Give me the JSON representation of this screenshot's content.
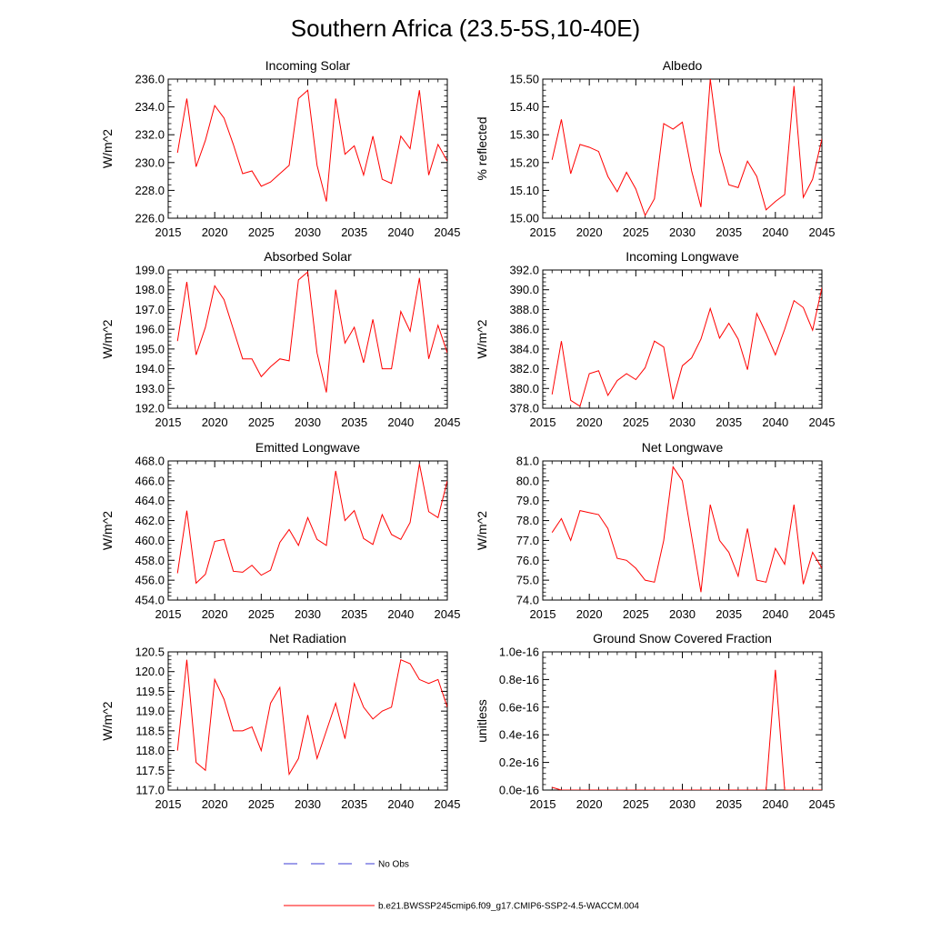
{
  "title": "Southern Africa (23.5-5S,10-40E)",
  "legend": {
    "entries": [
      {
        "label": "No Obs",
        "style": "dashed",
        "color": "#3b3bd6"
      },
      {
        "label": "b.e21.BWSSP245cmip6.f09_g17.CMIP6-SSP2-4.5-WACCM.004",
        "style": "solid",
        "color": "#ff0000"
      }
    ]
  },
  "chart_data": [
    {
      "type": "line",
      "title": "Incoming Solar",
      "ylabel": "W/m^2",
      "xlim": [
        2015,
        2045
      ],
      "ylim": [
        226,
        236
      ],
      "xticks": [
        2015,
        2020,
        2025,
        2030,
        2035,
        2040,
        2045
      ],
      "xtick_labels": [
        "2015",
        "2020",
        "2025",
        "2030",
        "2035",
        "2040",
        "2045"
      ],
      "yticks": [
        226,
        228,
        230,
        232,
        234,
        236
      ],
      "ytick_labels": [
        "226.0",
        "228.0",
        "230.0",
        "232.0",
        "234.0",
        "236.0"
      ],
      "x": [
        2016,
        2017,
        2018,
        2019,
        2020,
        2021,
        2022,
        2023,
        2024,
        2025,
        2026,
        2027,
        2028,
        2029,
        2030,
        2031,
        2032,
        2033,
        2034,
        2035,
        2036,
        2037,
        2038,
        2039,
        2040,
        2041,
        2042,
        2043,
        2044,
        2045
      ],
      "series": [
        {
          "color": "#ff0000",
          "values": [
            230.7,
            234.6,
            229.7,
            231.6,
            234.1,
            233.2,
            231.3,
            229.2,
            229.4,
            228.3,
            228.6,
            229.2,
            229.8,
            234.6,
            235.2,
            229.8,
            227.2,
            234.6,
            230.6,
            231.2,
            229.1,
            231.9,
            228.8,
            228.5,
            231.9,
            231.0,
            235.2,
            229.1,
            231.3,
            230.1
          ]
        }
      ]
    },
    {
      "type": "line",
      "title": "Albedo",
      "ylabel": "% reflected",
      "xlim": [
        2015,
        2045
      ],
      "ylim": [
        15.0,
        15.5
      ],
      "xticks": [
        2015,
        2020,
        2025,
        2030,
        2035,
        2040,
        2045
      ],
      "xtick_labels": [
        "2015",
        "2020",
        "2025",
        "2030",
        "2035",
        "2040",
        "2045"
      ],
      "yticks": [
        15.0,
        15.1,
        15.2,
        15.3,
        15.4,
        15.5
      ],
      "ytick_labels": [
        "15.00",
        "15.10",
        "15.20",
        "15.30",
        "15.40",
        "15.50"
      ],
      "x": [
        2016,
        2017,
        2018,
        2019,
        2020,
        2021,
        2022,
        2023,
        2024,
        2025,
        2026,
        2027,
        2028,
        2029,
        2030,
        2031,
        2032,
        2033,
        2034,
        2035,
        2036,
        2037,
        2038,
        2039,
        2040,
        2041,
        2042,
        2043,
        2044,
        2045
      ],
      "series": [
        {
          "color": "#ff0000",
          "values": [
            15.21,
            15.355,
            15.16,
            15.265,
            15.255,
            15.24,
            15.15,
            15.095,
            15.165,
            15.105,
            15.01,
            15.07,
            15.34,
            15.32,
            15.345,
            15.17,
            15.04,
            15.5,
            15.24,
            15.12,
            15.11,
            15.205,
            15.15,
            15.03,
            15.06,
            15.085,
            15.475,
            15.075,
            15.14,
            15.285
          ]
        }
      ]
    },
    {
      "type": "line",
      "title": "Absorbed Solar",
      "ylabel": "W/m^2",
      "xlim": [
        2015,
        2045
      ],
      "ylim": [
        192,
        199
      ],
      "xticks": [
        2015,
        2020,
        2025,
        2030,
        2035,
        2040,
        2045
      ],
      "xtick_labels": [
        "2015",
        "2020",
        "2025",
        "2030",
        "2035",
        "2040",
        "2045"
      ],
      "yticks": [
        192,
        193,
        194,
        195,
        196,
        197,
        198,
        199
      ],
      "ytick_labels": [
        "192.0",
        "193.0",
        "194.0",
        "195.0",
        "196.0",
        "197.0",
        "198.0",
        "199.0"
      ],
      "x": [
        2016,
        2017,
        2018,
        2019,
        2020,
        2021,
        2022,
        2023,
        2024,
        2025,
        2026,
        2027,
        2028,
        2029,
        2030,
        2031,
        2032,
        2033,
        2034,
        2035,
        2036,
        2037,
        2038,
        2039,
        2040,
        2041,
        2042,
        2043,
        2044,
        2045
      ],
      "series": [
        {
          "color": "#ff0000",
          "values": [
            195.4,
            198.4,
            194.7,
            196.1,
            198.2,
            197.5,
            196.0,
            194.5,
            194.5,
            193.6,
            194.1,
            194.5,
            194.4,
            198.5,
            198.9,
            194.8,
            192.8,
            198.0,
            195.3,
            196.1,
            194.3,
            196.5,
            194.0,
            194.0,
            196.9,
            195.9,
            198.6,
            194.5,
            196.2,
            194.8
          ]
        }
      ]
    },
    {
      "type": "line",
      "title": "Incoming Longwave",
      "ylabel": "W/m^2",
      "xlim": [
        2015,
        2045
      ],
      "ylim": [
        378,
        392
      ],
      "xticks": [
        2015,
        2020,
        2025,
        2030,
        2035,
        2040,
        2045
      ],
      "xtick_labels": [
        "2015",
        "2020",
        "2025",
        "2030",
        "2035",
        "2040",
        "2045"
      ],
      "yticks": [
        378,
        380,
        382,
        384,
        386,
        388,
        390,
        392
      ],
      "ytick_labels": [
        "378.0",
        "380.0",
        "382.0",
        "384.0",
        "386.0",
        "388.0",
        "390.0",
        "392.0"
      ],
      "x": [
        2016,
        2017,
        2018,
        2019,
        2020,
        2021,
        2022,
        2023,
        2024,
        2025,
        2026,
        2027,
        2028,
        2029,
        2030,
        2031,
        2032,
        2033,
        2034,
        2035,
        2036,
        2037,
        2038,
        2039,
        2040,
        2041,
        2042,
        2043,
        2044,
        2045
      ],
      "series": [
        {
          "color": "#ff0000",
          "values": [
            379.4,
            384.8,
            378.8,
            378.2,
            381.5,
            381.8,
            379.3,
            380.8,
            381.5,
            380.9,
            382.1,
            384.8,
            384.2,
            378.9,
            382.3,
            383.1,
            385.0,
            388.1,
            385.1,
            386.6,
            385.0,
            381.9,
            387.6,
            385.6,
            383.4,
            386.0,
            388.9,
            388.2,
            385.9,
            390.2
          ]
        }
      ]
    },
    {
      "type": "line",
      "title": "Emitted Longwave",
      "ylabel": "W/m^2",
      "xlim": [
        2015,
        2045
      ],
      "ylim": [
        454,
        468
      ],
      "xticks": [
        2015,
        2020,
        2025,
        2030,
        2035,
        2040,
        2045
      ],
      "xtick_labels": [
        "2015",
        "2020",
        "2025",
        "2030",
        "2035",
        "2040",
        "2045"
      ],
      "yticks": [
        454,
        456,
        458,
        460,
        462,
        464,
        466,
        468
      ],
      "ytick_labels": [
        "454.0",
        "456.0",
        "458.0",
        "460.0",
        "462.0",
        "464.0",
        "466.0",
        "468.0"
      ],
      "x": [
        2016,
        2017,
        2018,
        2019,
        2020,
        2021,
        2022,
        2023,
        2024,
        2025,
        2026,
        2027,
        2028,
        2029,
        2030,
        2031,
        2032,
        2033,
        2034,
        2035,
        2036,
        2037,
        2038,
        2039,
        2040,
        2041,
        2042,
        2043,
        2044,
        2045
      ],
      "series": [
        {
          "color": "#ff0000",
          "values": [
            456.7,
            463.0,
            455.7,
            456.6,
            459.9,
            460.1,
            456.9,
            456.8,
            457.5,
            456.5,
            457.0,
            459.8,
            461.1,
            459.5,
            462.3,
            460.1,
            459.5,
            467.0,
            462.0,
            463.0,
            460.2,
            459.6,
            462.6,
            460.6,
            460.1,
            461.8,
            467.7,
            462.9,
            462.3,
            466.0
          ]
        }
      ]
    },
    {
      "type": "line",
      "title": "Net Longwave",
      "ylabel": "W/m^2",
      "xlim": [
        2015,
        2045
      ],
      "ylim": [
        74,
        81
      ],
      "xticks": [
        2015,
        2020,
        2025,
        2030,
        2035,
        2040,
        2045
      ],
      "xtick_labels": [
        "2015",
        "2020",
        "2025",
        "2030",
        "2035",
        "2040",
        "2045"
      ],
      "yticks": [
        74,
        75,
        76,
        77,
        78,
        79,
        80,
        81
      ],
      "ytick_labels": [
        "74.0",
        "75.0",
        "76.0",
        "77.0",
        "78.0",
        "79.0",
        "80.0",
        "81.0"
      ],
      "x": [
        2016,
        2017,
        2018,
        2019,
        2020,
        2021,
        2022,
        2023,
        2024,
        2025,
        2026,
        2027,
        2028,
        2029,
        2030,
        2031,
        2032,
        2033,
        2034,
        2035,
        2036,
        2037,
        2038,
        2039,
        2040,
        2041,
        2042,
        2043,
        2044,
        2045
      ],
      "series": [
        {
          "color": "#ff0000",
          "values": [
            77.4,
            78.1,
            77.0,
            78.5,
            78.4,
            78.3,
            77.6,
            76.1,
            76.0,
            75.6,
            75.0,
            74.9,
            77.0,
            80.7,
            80.0,
            77.2,
            74.4,
            78.8,
            77.0,
            76.4,
            75.2,
            77.6,
            75.0,
            74.9,
            76.6,
            75.8,
            78.8,
            74.8,
            76.4,
            75.6
          ]
        }
      ]
    },
    {
      "type": "line",
      "title": "Net Radiation",
      "ylabel": "W/m^2",
      "xlim": [
        2015,
        2045
      ],
      "ylim": [
        117,
        120.5
      ],
      "xticks": [
        2015,
        2020,
        2025,
        2030,
        2035,
        2040,
        2045
      ],
      "xtick_labels": [
        "2015",
        "2020",
        "2025",
        "2030",
        "2035",
        "2040",
        "2045"
      ],
      "yticks": [
        117,
        117.5,
        118,
        118.5,
        119,
        119.5,
        120,
        120.5
      ],
      "ytick_labels": [
        "117.0",
        "117.5",
        "118.0",
        "118.5",
        "119.0",
        "119.5",
        "120.0",
        "120.5"
      ],
      "x": [
        2016,
        2017,
        2018,
        2019,
        2020,
        2021,
        2022,
        2023,
        2024,
        2025,
        2026,
        2027,
        2028,
        2029,
        2030,
        2031,
        2032,
        2033,
        2034,
        2035,
        2036,
        2037,
        2038,
        2039,
        2040,
        2041,
        2042,
        2043,
        2044,
        2045
      ],
      "series": [
        {
          "color": "#ff0000",
          "values": [
            118.0,
            120.3,
            117.7,
            117.5,
            119.8,
            119.3,
            118.5,
            118.5,
            118.6,
            118.0,
            119.2,
            119.6,
            117.4,
            117.8,
            118.9,
            117.8,
            118.5,
            119.2,
            118.3,
            119.7,
            119.1,
            118.8,
            119.0,
            119.1,
            120.3,
            120.2,
            119.8,
            119.7,
            119.8,
            119.1
          ]
        }
      ]
    },
    {
      "type": "line",
      "title": "Ground Snow Covered Fraction",
      "ylabel": "unitless",
      "xlim": [
        2015,
        2045
      ],
      "ylim": [
        0,
        1e-16
      ],
      "xticks": [
        2015,
        2020,
        2025,
        2030,
        2035,
        2040,
        2045
      ],
      "xtick_labels": [
        "2015",
        "2020",
        "2025",
        "2030",
        "2035",
        "2040",
        "2045"
      ],
      "yticks": [
        0,
        2e-17,
        4e-17,
        6e-17,
        8e-17,
        1e-16
      ],
      "ytick_labels": [
        "0.0e-16",
        "0.2e-16",
        "0.4e-16",
        "0.6e-16",
        "0.8e-16",
        "1.0e-16"
      ],
      "x": [
        2016,
        2017,
        2018,
        2019,
        2020,
        2021,
        2022,
        2023,
        2024,
        2025,
        2026,
        2027,
        2028,
        2029,
        2030,
        2031,
        2032,
        2033,
        2034,
        2035,
        2036,
        2037,
        2038,
        2039,
        2040,
        2041,
        2042,
        2043,
        2044,
        2045
      ],
      "series": [
        {
          "color": "#ff0000",
          "values": [
            2e-18,
            0,
            0,
            0,
            0,
            0,
            0,
            0,
            0,
            0,
            0,
            0,
            0,
            0,
            0,
            0,
            0,
            0,
            0,
            0,
            0,
            0,
            0,
            0,
            8.7e-17,
            0,
            0,
            0,
            0,
            0
          ]
        }
      ]
    }
  ]
}
